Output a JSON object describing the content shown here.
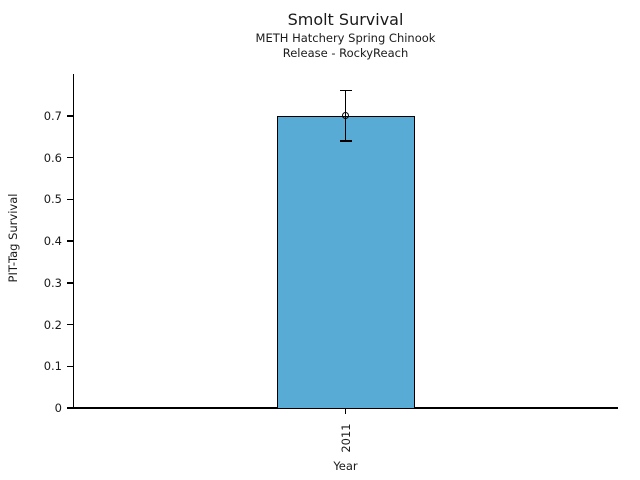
{
  "chart_data": {
    "type": "bar",
    "title": "Smolt Survival",
    "subtitle": [
      "METH Hatchery Spring Chinook",
      "Release - RockyReach"
    ],
    "xlabel": "Year",
    "ylabel": "PIT-Tag Survival",
    "categories": [
      "2011"
    ],
    "values": [
      0.7
    ],
    "error_bars": [
      {
        "center": 0.7,
        "low": 0.64,
        "high": 0.76
      }
    ],
    "ylim": [
      0,
      0.8
    ],
    "yticks": [
      0,
      0.1,
      0.2,
      0.3,
      0.4,
      0.5,
      0.6,
      0.7
    ],
    "ytick_labels": [
      "0",
      "0.1",
      "0.2",
      "0.3",
      "0.4",
      "0.5",
      "0.6",
      "0.7"
    ],
    "grid": false,
    "legend": "none",
    "bar_color": "#58ABD5",
    "bar_edge_color": "#000000",
    "error_color": "#000000",
    "background": "#FFFFFF"
  }
}
